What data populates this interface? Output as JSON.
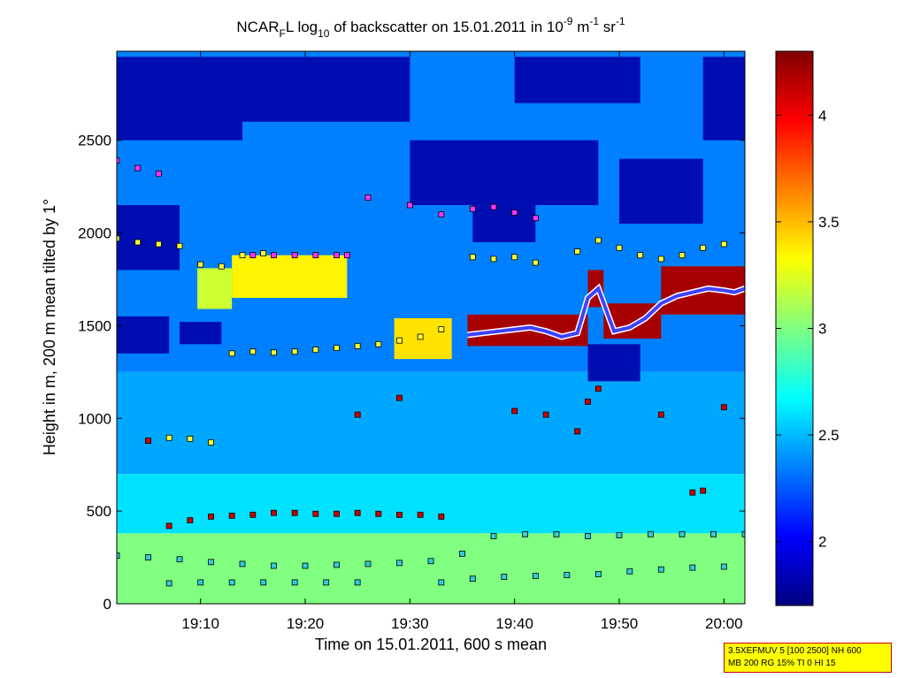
{
  "chart_data": {
    "type": "heatmap",
    "title": {
      "main": "NCAR",
      "sub1": "F",
      "part2": "L log",
      "sub2": "10",
      "part3": " of backscatter on 15.01.2011 in 10",
      "sup1": "-9",
      "part4": " m",
      "sup2": "-1",
      "part5": " sr",
      "sup3": "-1"
    },
    "xlabel": "Time on 15.01.2011, 600 s mean",
    "ylabel": "Height in m, 200 m mean tilted by 1°",
    "x_unit": "minutes since 19:00",
    "xlim": [
      2,
      62
    ],
    "ylim": [
      0,
      2980
    ],
    "xticks": [
      {
        "value": 10,
        "label": "19:10"
      },
      {
        "value": 20,
        "label": "19:20"
      },
      {
        "value": 30,
        "label": "19:30"
      },
      {
        "value": 40,
        "label": "19:40"
      },
      {
        "value": 50,
        "label": "19:50"
      },
      {
        "value": 60,
        "label": "20:00"
      }
    ],
    "yticks": [
      0,
      500,
      1000,
      1500,
      2000,
      2500
    ],
    "colorbar": {
      "range": [
        1.7,
        4.3
      ],
      "ticks": [
        {
          "value": 2,
          "label": "2"
        },
        {
          "value": 2.5,
          "label": "2.5"
        },
        {
          "value": 3,
          "label": "3"
        },
        {
          "value": 3.5,
          "label": "3.5"
        },
        {
          "value": 4,
          "label": "4"
        }
      ],
      "colormap": [
        "#000080",
        "#0000ff",
        "#0080ff",
        "#00ffff",
        "#80ff80",
        "#ffff00",
        "#ff8000",
        "#ff0000",
        "#800000"
      ]
    },
    "background_layers": [
      {
        "t0": 2,
        "t1": 62,
        "h0": 0,
        "h1": 380,
        "value": 3.0
      },
      {
        "t0": 2,
        "t1": 62,
        "h0": 380,
        "h1": 700,
        "value": 2.6
      },
      {
        "t0": 2,
        "t1": 62,
        "h0": 700,
        "h1": 1250,
        "value": 2.45
      },
      {
        "t0": 2,
        "t1": 62,
        "h0": 1250,
        "h1": 2980,
        "value": 2.35
      }
    ],
    "dark_patches": [
      {
        "t0": 2,
        "t1": 14,
        "h0": 2500,
        "h1": 2950
      },
      {
        "t0": 2,
        "t1": 8,
        "h0": 1800,
        "h1": 2150
      },
      {
        "t0": 2,
        "t1": 7,
        "h0": 1350,
        "h1": 1550
      },
      {
        "t0": 14,
        "t1": 30,
        "h0": 2600,
        "h1": 2950
      },
      {
        "t0": 30,
        "t1": 48,
        "h0": 2150,
        "h1": 2500
      },
      {
        "t0": 40,
        "t1": 52,
        "h0": 2700,
        "h1": 2950
      },
      {
        "t0": 50,
        "t1": 58,
        "h0": 2050,
        "h1": 2400
      },
      {
        "t0": 58,
        "t1": 62,
        "h0": 2500,
        "h1": 2950
      },
      {
        "t0": 36,
        "t1": 42,
        "h0": 1950,
        "h1": 2150
      },
      {
        "t0": 47,
        "t1": 52,
        "h0": 1200,
        "h1": 1400
      },
      {
        "t0": 8,
        "t1": 12,
        "h0": 1400,
        "h1": 1520
      }
    ],
    "aerosol_blocks": [
      {
        "t0": 9.7,
        "t1": 13,
        "h0": 1590,
        "h1": 1810,
        "value": 3.2
      },
      {
        "t0": 13,
        "t1": 24,
        "h0": 1650,
        "h1": 1880,
        "value": 3.35
      },
      {
        "t0": 28.5,
        "t1": 34,
        "h0": 1320,
        "h1": 1540,
        "value": 3.4
      }
    ],
    "cloud_segments": [
      {
        "t0": 35.5,
        "t1": 47,
        "h0": 1390,
        "h1": 1560
      },
      {
        "t0": 47,
        "t1": 48.5,
        "h0": 1600,
        "h1": 1800
      },
      {
        "t0": 48.5,
        "t1": 54,
        "h0": 1430,
        "h1": 1620
      },
      {
        "t0": 54,
        "t1": 62,
        "h0": 1560,
        "h1": 1820
      }
    ],
    "cloud_base": {
      "t": [
        35.5,
        37,
        38.5,
        40,
        41.5,
        43,
        44.5,
        46,
        47,
        48,
        49.5,
        51,
        52.5,
        54,
        55.5,
        57,
        58.5,
        60,
        61,
        62
      ],
      "h": [
        1450,
        1460,
        1470,
        1480,
        1490,
        1470,
        1440,
        1460,
        1650,
        1700,
        1470,
        1490,
        1540,
        1620,
        1660,
        1680,
        1700,
        1690,
        1680,
        1700
      ]
    },
    "marker_series": [
      {
        "name": "surface-layer",
        "color": "#33ccdd",
        "t": [
          2,
          5,
          8,
          11,
          14,
          17,
          20,
          23,
          26,
          29,
          32,
          35,
          38,
          41,
          44,
          47,
          50,
          53,
          56,
          59,
          62
        ],
        "h": [
          260,
          250,
          240,
          225,
          215,
          205,
          205,
          210,
          215,
          220,
          230,
          270,
          365,
          375,
          375,
          365,
          370,
          375,
          375,
          375,
          375
        ]
      },
      {
        "name": "low-layer",
        "color": "#33ccdd",
        "t": [
          7,
          10,
          13,
          16,
          19,
          22,
          25,
          33,
          36,
          39,
          42,
          45,
          48,
          51,
          54,
          57,
          60
        ],
        "h": [
          110,
          115,
          115,
          115,
          115,
          115,
          115,
          115,
          135,
          145,
          150,
          155,
          160,
          175,
          185,
          195,
          200
        ]
      },
      {
        "name": "pbl-top",
        "color": "#cc0000",
        "t": [
          7,
          9,
          11,
          13,
          15,
          17,
          19,
          21,
          23,
          25,
          27,
          29,
          31,
          33
        ],
        "h": [
          420,
          450,
          470,
          475,
          480,
          490,
          490,
          485,
          485,
          490,
          485,
          480,
          480,
          470
        ]
      },
      {
        "name": "elevated-layer",
        "color": "#ffff33",
        "t": [
          5,
          7,
          9,
          11,
          13,
          15,
          17,
          19,
          21,
          23,
          25,
          27,
          29,
          31,
          33
        ],
        "h": [
          880,
          895,
          890,
          870,
          1350,
          1360,
          1355,
          1360,
          1370,
          1380,
          1390,
          1400,
          1420,
          1440,
          1480
        ]
      },
      {
        "name": "upper-layer",
        "color": "#ff33ff",
        "t": [
          2,
          4,
          6,
          15,
          17,
          19,
          21,
          23,
          24,
          26,
          30,
          33,
          36,
          38,
          40,
          42
        ],
        "h": [
          2390,
          2350,
          2320,
          1880,
          1880,
          1880,
          1880,
          1880,
          1880,
          2190,
          2150,
          2100,
          2130,
          2140,
          2110,
          2080
        ]
      },
      {
        "name": "cirrus-base",
        "color": "#ffff33",
        "t": [
          2,
          4,
          6,
          8,
          10,
          12,
          14,
          16,
          36,
          38,
          40,
          42,
          46,
          48,
          50,
          52,
          54,
          56,
          58,
          60
        ],
        "h": [
          1970,
          1950,
          1940,
          1930,
          1830,
          1820,
          1880,
          1890,
          1870,
          1860,
          1870,
          1840,
          1900,
          1960,
          1920,
          1880,
          1860,
          1880,
          1920,
          1940
        ]
      },
      {
        "name": "scattered-lows",
        "color": "#cc0000",
        "t": [
          5,
          25,
          29,
          40,
          43,
          46,
          47,
          48,
          54,
          57,
          58,
          60
        ],
        "h": [
          880,
          1020,
          1110,
          1040,
          1020,
          930,
          1090,
          1160,
          1020,
          600,
          610,
          1060
        ]
      }
    ]
  },
  "annotation": {
    "line1": "3.5XEFMUV 5 [100 2500] NH 600",
    "line2": "MB 200 RG 15% TI 0 HI 15"
  }
}
